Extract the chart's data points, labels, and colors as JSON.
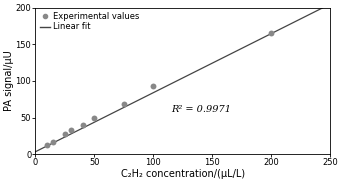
{
  "x_data": [
    10,
    15,
    25,
    30,
    40,
    50,
    75,
    100,
    200
  ],
  "y_data": [
    12,
    17,
    28,
    33,
    40,
    50,
    68,
    93,
    165
  ],
  "fit_slope": 0.805,
  "fit_intercept": 3.5,
  "r_squared": "R² = 0.9971",
  "r_sq_x": 115,
  "r_sq_y": 58,
  "xlabel": "C₂H₂ concentration/(μL/L)",
  "ylabel": "PA signal/μU",
  "xlim": [
    0,
    250
  ],
  "ylim": [
    0,
    200
  ],
  "xticks": [
    0,
    50,
    100,
    150,
    200,
    250
  ],
  "yticks": [
    0,
    50,
    100,
    150,
    200
  ],
  "legend_marker_label": "Experimental values",
  "legend_line_label": "Linear fit",
  "marker_color": "#888888",
  "line_color": "#444444",
  "bg_color": "#ffffff",
  "marker_size": 18,
  "figsize": [
    3.42,
    1.83
  ],
  "dpi": 100
}
